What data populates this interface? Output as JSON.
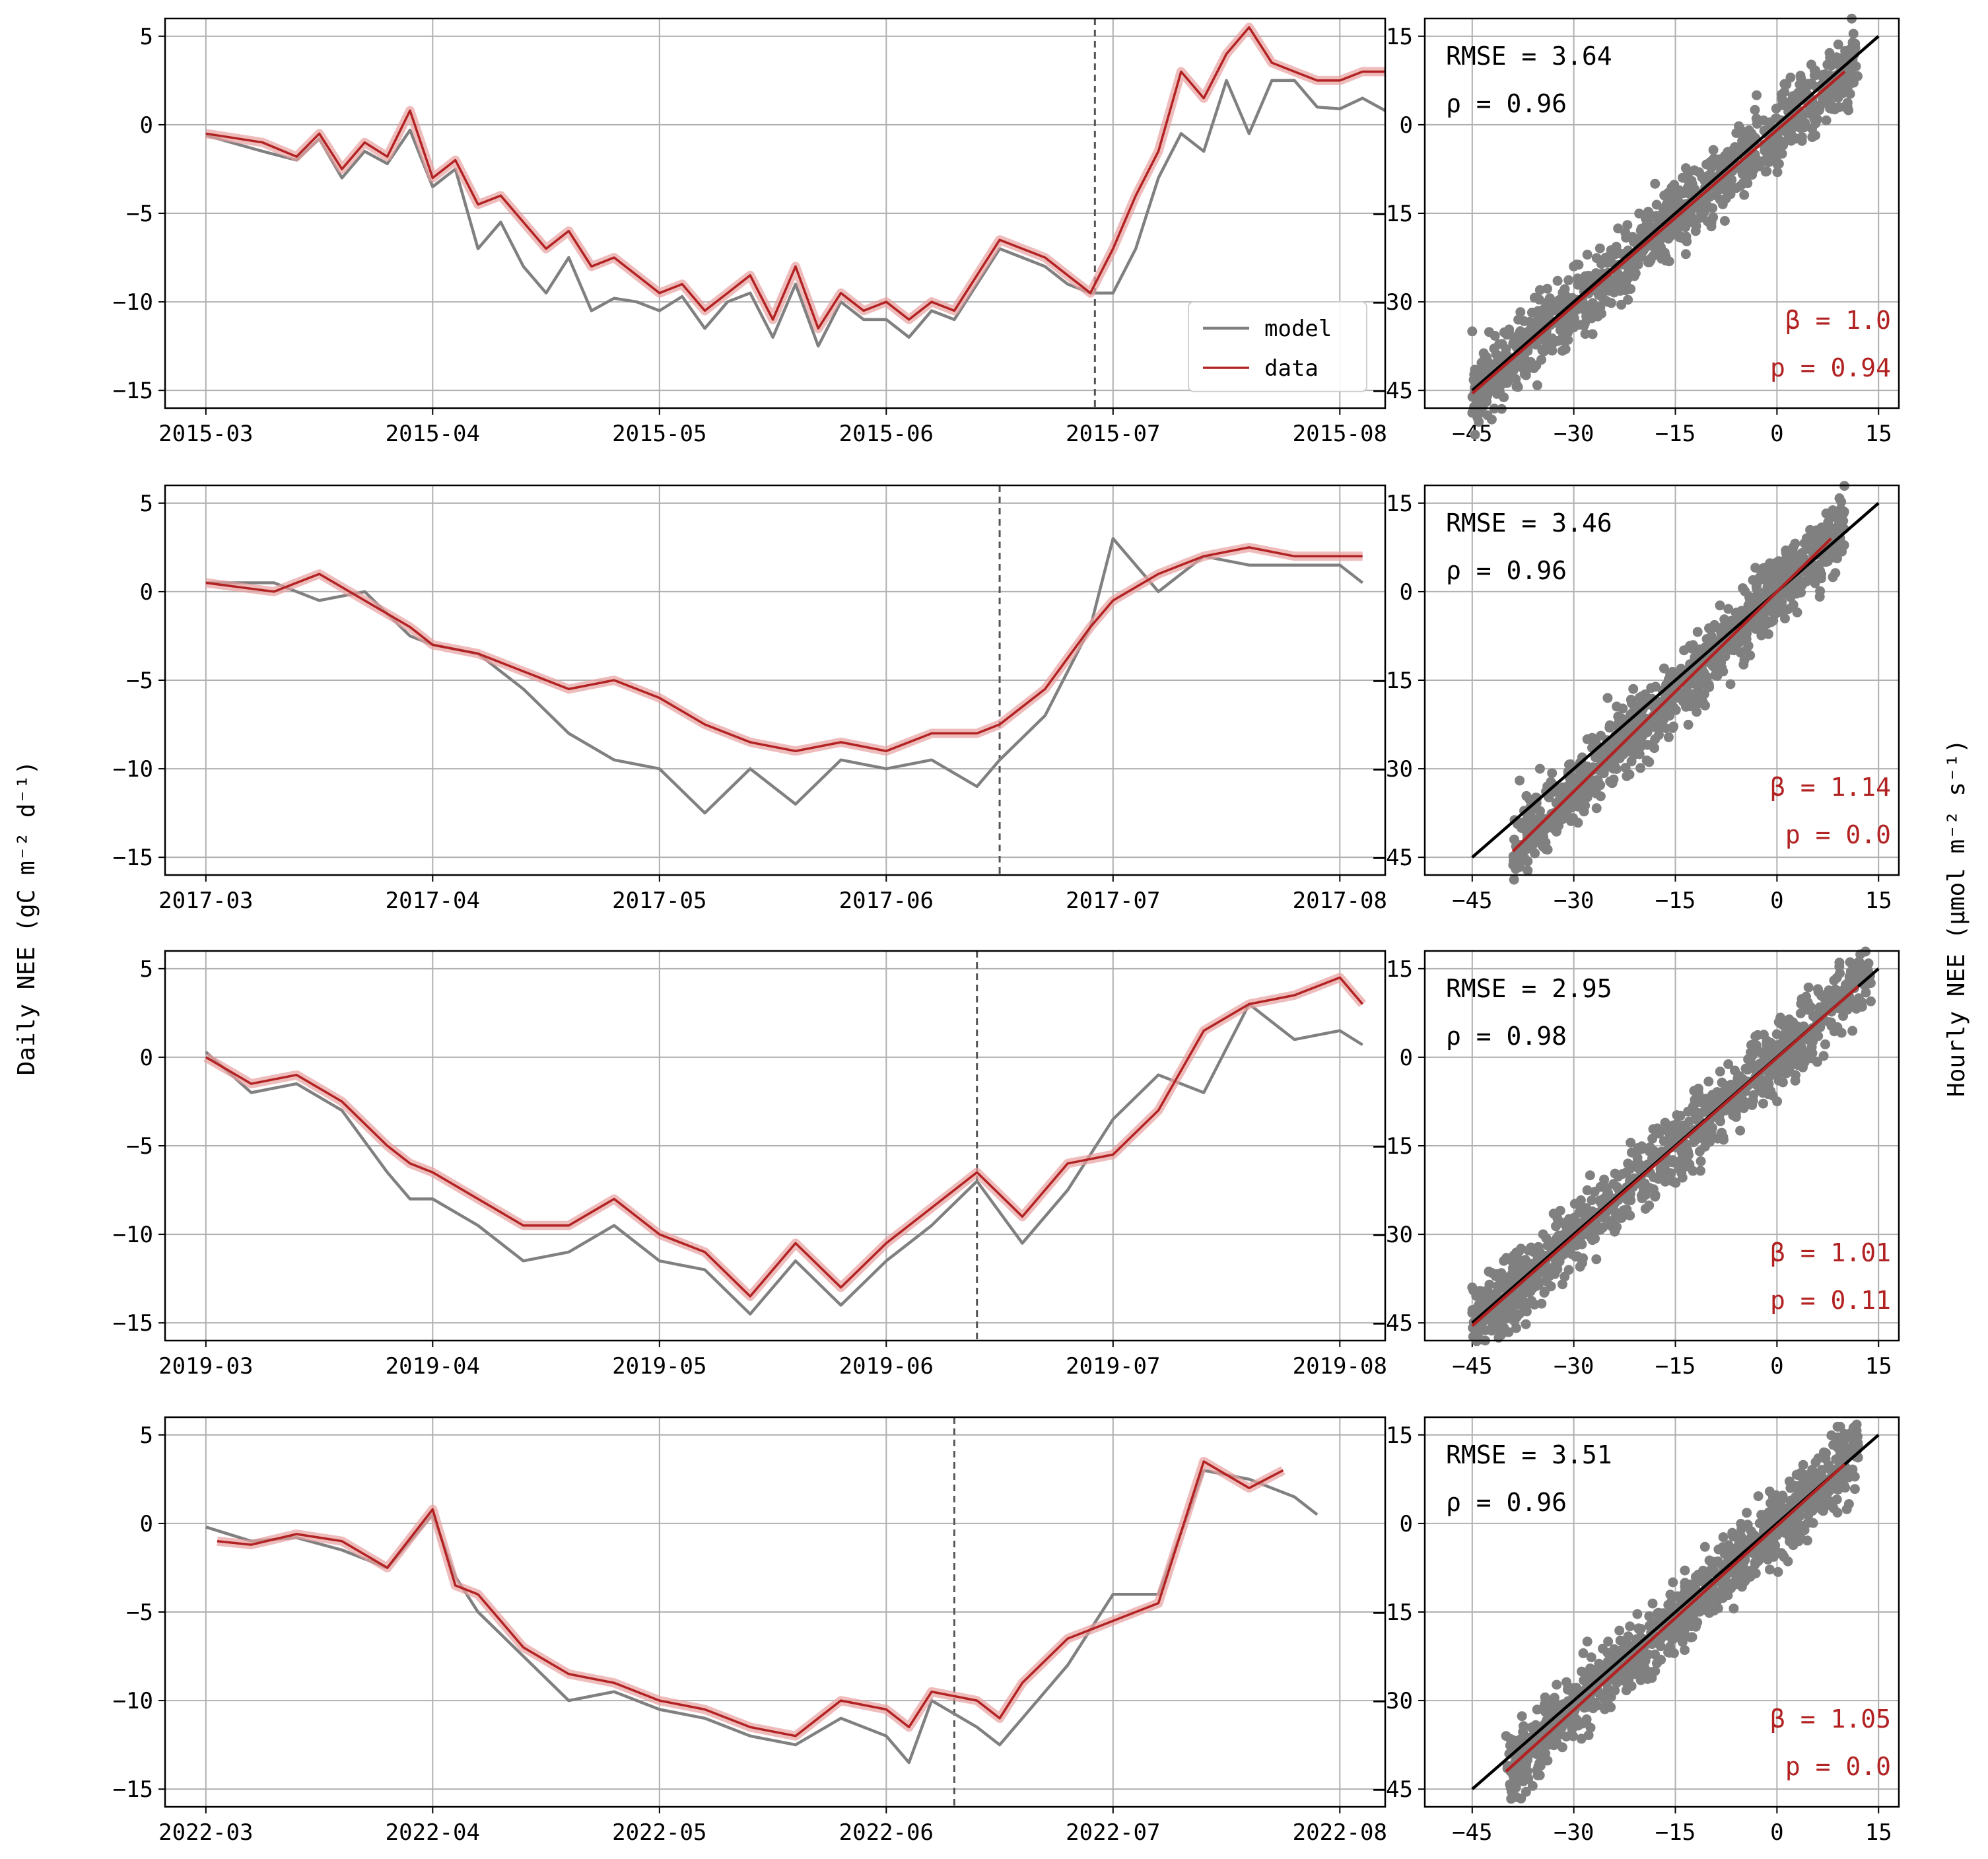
{
  "figure": {
    "left_ylabel": "Daily NEE (gC m⁻² d⁻¹)",
    "right_ylabel": "Hourly NEE (μmol m⁻² s⁻¹)",
    "legend": [
      {
        "label": "model",
        "color": "#808080"
      },
      {
        "label": "data",
        "color": "#b22222"
      }
    ],
    "colors": {
      "model": "#808080",
      "data": "#b22222",
      "band": "#e8a0a0",
      "one_to_one": "#000000",
      "grid": "#b0b0b0"
    }
  },
  "chart_data": [
    {
      "type": "line",
      "year": "2015",
      "x_ticks": [
        "2015-03",
        "2015-04",
        "2015-05",
        "2015-06",
        "2015-07",
        "2015-08"
      ],
      "x_range": [
        -0.18,
        5.2
      ],
      "y_ticks": [
        "5",
        "0",
        "−5",
        "−10",
        "−15"
      ],
      "ylim": [
        -16,
        6
      ],
      "split_marker": 3.92,
      "grid": true,
      "legend_position": "lower-right",
      "series": [
        {
          "name": "model",
          "x": [
            0,
            0.25,
            0.4,
            0.5,
            0.6,
            0.7,
            0.8,
            0.9,
            1.0,
            1.1,
            1.2,
            1.3,
            1.4,
            1.5,
            1.6,
            1.7,
            1.8,
            1.9,
            2.0,
            2.1,
            2.2,
            2.3,
            2.4,
            2.5,
            2.6,
            2.7,
            2.8,
            2.9,
            3.0,
            3.1,
            3.2,
            3.3,
            3.4,
            3.5,
            3.6,
            3.7,
            3.8,
            3.9,
            4.0,
            4.1,
            4.2,
            4.3,
            4.4,
            4.5,
            4.6,
            4.7,
            4.8,
            4.9,
            5.0,
            5.1,
            5.2
          ],
          "y": [
            -0.6,
            -1.5,
            -2.0,
            -0.8,
            -3.0,
            -1.5,
            -2.2,
            -0.3,
            -3.5,
            -2.5,
            -7.0,
            -5.5,
            -8.0,
            -9.5,
            -7.5,
            -10.5,
            -9.8,
            -10.0,
            -10.5,
            -9.7,
            -11.5,
            -10.0,
            -9.5,
            -12.0,
            -9.0,
            -12.5,
            -10.0,
            -11.0,
            -11.0,
            -12.0,
            -10.5,
            -11.0,
            -9.0,
            -7.0,
            -7.5,
            -8.0,
            -9.0,
            -9.5,
            -9.5,
            -7.0,
            -3.0,
            -0.5,
            -1.5,
            2.5,
            -0.5,
            2.5,
            2.5,
            1.0,
            0.9,
            1.5,
            0.8
          ]
        },
        {
          "name": "data",
          "x": [
            0,
            0.25,
            0.4,
            0.5,
            0.6,
            0.7,
            0.8,
            0.9,
            1.0,
            1.1,
            1.2,
            1.3,
            1.4,
            1.5,
            1.6,
            1.7,
            1.8,
            1.9,
            2.0,
            2.1,
            2.2,
            2.3,
            2.4,
            2.5,
            2.6,
            2.7,
            2.8,
            2.9,
            3.0,
            3.1,
            3.2,
            3.3,
            3.4,
            3.5,
            3.6,
            3.7,
            3.8,
            3.9,
            4.0,
            4.1,
            4.2,
            4.3,
            4.4,
            4.5,
            4.6,
            4.7,
            4.8,
            4.9,
            5.0,
            5.1,
            5.2
          ],
          "y": [
            -0.5,
            -1.0,
            -1.8,
            -0.5,
            -2.5,
            -1.0,
            -1.8,
            0.8,
            -3.0,
            -2.0,
            -4.5,
            -4.0,
            -5.5,
            -7.0,
            -6.0,
            -8.0,
            -7.5,
            -8.5,
            -9.5,
            -9.0,
            -10.5,
            -9.5,
            -8.5,
            -11.0,
            -8.0,
            -11.5,
            -9.5,
            -10.5,
            -10.0,
            -11.0,
            -10.0,
            -10.5,
            -8.5,
            -6.5,
            -7.0,
            -7.5,
            -8.5,
            -9.5,
            -7.0,
            -4.0,
            -1.5,
            3.0,
            1.5,
            4.0,
            5.5,
            3.5,
            3.0,
            2.5,
            2.5,
            3.0,
            3.0
          ]
        }
      ]
    },
    {
      "type": "scatter",
      "year": "2015",
      "x_ticks": [
        "−45",
        "−30",
        "−15",
        "0",
        "15"
      ],
      "y_ticks": [
        "15",
        "0",
        "−15",
        "−30",
        "−45"
      ],
      "xlim": [
        -52,
        18
      ],
      "ylim": [
        -48,
        18
      ],
      "one_to_one": [
        [
          -45,
          -45
        ],
        [
          15,
          15
        ]
      ],
      "fit_line": [
        [
          -45,
          -45.5
        ],
        [
          10,
          9
        ]
      ],
      "stats": {
        "rmse": "RMSE = 3.64",
        "rho": "ρ = 0.96",
        "beta": "β = 1.0",
        "p": "p = 0.94"
      },
      "points": [
        [
          -45,
          -35
        ],
        [
          -40,
          -38
        ],
        [
          -35,
          -36
        ],
        [
          -30,
          -24
        ],
        [
          -25,
          -30
        ],
        [
          -20,
          -19
        ],
        [
          -15,
          -16
        ],
        [
          -10,
          -14
        ],
        [
          -5,
          -4
        ],
        [
          0,
          -2
        ],
        [
          5,
          3
        ],
        [
          8,
          10
        ],
        [
          10,
          6
        ],
        [
          -28,
          -22
        ],
        [
          -18,
          -10
        ],
        [
          -12,
          -18
        ],
        [
          -3,
          5
        ],
        [
          2,
          8
        ],
        [
          -35,
          -28
        ],
        [
          -22,
          -26
        ]
      ]
    },
    {
      "type": "line",
      "year": "2017",
      "x_ticks": [
        "2017-03",
        "2017-04",
        "2017-05",
        "2017-06",
        "2017-07",
        "2017-08"
      ],
      "x_range": [
        -0.18,
        5.2
      ],
      "y_ticks": [
        "5",
        "0",
        "−5",
        "−10",
        "−15"
      ],
      "ylim": [
        -16,
        6
      ],
      "split_marker": 3.5,
      "grid": true,
      "series": [
        {
          "name": "model",
          "x": [
            0,
            0.3,
            0.5,
            0.7,
            0.9,
            1.0,
            1.2,
            1.4,
            1.6,
            1.8,
            2.0,
            2.2,
            2.4,
            2.6,
            2.8,
            3.0,
            3.2,
            3.4,
            3.5,
            3.7,
            3.9,
            4.0,
            4.2,
            4.4,
            4.6,
            4.8,
            5.0,
            5.1
          ],
          "y": [
            0.5,
            0.5,
            -0.5,
            0.0,
            -2.5,
            -3.0,
            -3.5,
            -5.5,
            -8.0,
            -9.5,
            -10.0,
            -12.5,
            -10.0,
            -12.0,
            -9.5,
            -10.0,
            -9.5,
            -11.0,
            -9.5,
            -7.0,
            -2.0,
            3.0,
            0.0,
            2.0,
            1.5,
            1.5,
            1.5,
            0.5
          ]
        },
        {
          "name": "data",
          "x": [
            0,
            0.3,
            0.5,
            0.7,
            0.9,
            1.0,
            1.2,
            1.4,
            1.6,
            1.8,
            2.0,
            2.2,
            2.4,
            2.6,
            2.8,
            3.0,
            3.2,
            3.4,
            3.5,
            3.7,
            3.9,
            4.0,
            4.2,
            4.4,
            4.6,
            4.8,
            5.0,
            5.1
          ],
          "y": [
            0.5,
            0.0,
            1.0,
            -0.5,
            -2.0,
            -3.0,
            -3.5,
            -4.5,
            -5.5,
            -5.0,
            -6.0,
            -7.5,
            -8.5,
            -9.0,
            -8.5,
            -9.0,
            -8.0,
            -8.0,
            -7.5,
            -5.5,
            -2.0,
            -0.5,
            1.0,
            2.0,
            2.5,
            2.0,
            2.0,
            2.0
          ]
        }
      ]
    },
    {
      "type": "scatter",
      "year": "2017",
      "x_ticks": [
        "−45",
        "−30",
        "−15",
        "0",
        "15"
      ],
      "y_ticks": [
        "15",
        "0",
        "−15",
        "−30",
        "−45"
      ],
      "xlim": [
        -52,
        18
      ],
      "ylim": [
        -48,
        18
      ],
      "one_to_one": [
        [
          -45,
          -45
        ],
        [
          15,
          15
        ]
      ],
      "fit_line": [
        [
          -39,
          -44
        ],
        [
          8,
          9
        ]
      ],
      "stats": {
        "rmse": "RMSE = 3.46",
        "rho": "ρ = 0.96",
        "beta": "β = 1.14",
        "p": "p = 0.0"
      },
      "points": [
        [
          -38,
          -32
        ],
        [
          -35,
          -30
        ],
        [
          -30,
          -34
        ],
        [
          -28,
          -25
        ],
        [
          -25,
          -28
        ],
        [
          -20,
          -21
        ],
        [
          -15,
          -14
        ],
        [
          -12,
          -18
        ],
        [
          -8,
          -10
        ],
        [
          -5,
          -6
        ],
        [
          0,
          -1
        ],
        [
          5,
          2
        ],
        [
          8,
          8
        ],
        [
          -25,
          -18
        ],
        [
          -18,
          -25
        ],
        [
          -10,
          -12
        ],
        [
          -2,
          4
        ],
        [
          3,
          6
        ]
      ]
    },
    {
      "type": "line",
      "year": "2019",
      "x_ticks": [
        "2019-03",
        "2019-04",
        "2019-05",
        "2019-06",
        "2019-07",
        "2019-08"
      ],
      "x_range": [
        -0.18,
        5.2
      ],
      "y_ticks": [
        "5",
        "0",
        "−5",
        "−10",
        "−15"
      ],
      "ylim": [
        -16,
        6
      ],
      "split_marker": 3.4,
      "grid": true,
      "series": [
        {
          "name": "model",
          "x": [
            0,
            0.2,
            0.4,
            0.6,
            0.8,
            0.9,
            1.0,
            1.2,
            1.4,
            1.6,
            1.8,
            2.0,
            2.2,
            2.4,
            2.6,
            2.8,
            3.0,
            3.2,
            3.4,
            3.6,
            3.8,
            4.0,
            4.2,
            4.4,
            4.6,
            4.8,
            5.0,
            5.1
          ],
          "y": [
            0.3,
            -2.0,
            -1.5,
            -3.0,
            -6.5,
            -8.0,
            -8.0,
            -9.5,
            -11.5,
            -11.0,
            -9.5,
            -11.5,
            -12.0,
            -14.5,
            -11.5,
            -14.0,
            -11.5,
            -9.5,
            -7.0,
            -10.5,
            -7.5,
            -3.5,
            -1.0,
            -2.0,
            3.0,
            1.0,
            1.5,
            0.7
          ]
        },
        {
          "name": "data",
          "x": [
            0,
            0.2,
            0.4,
            0.6,
            0.8,
            0.9,
            1.0,
            1.2,
            1.4,
            1.6,
            1.8,
            2.0,
            2.2,
            2.4,
            2.6,
            2.8,
            3.0,
            3.2,
            3.4,
            3.6,
            3.8,
            4.0,
            4.2,
            4.4,
            4.6,
            4.8,
            5.0,
            5.1
          ],
          "y": [
            0.0,
            -1.5,
            -1.0,
            -2.5,
            -5.0,
            -6.0,
            -6.5,
            -8.0,
            -9.5,
            -9.5,
            -8.0,
            -10.0,
            -11.0,
            -13.5,
            -10.5,
            -13.0,
            -10.5,
            -8.5,
            -6.5,
            -9.0,
            -6.0,
            -5.5,
            -3.0,
            1.5,
            3.0,
            3.5,
            4.5,
            3.0
          ]
        }
      ]
    },
    {
      "type": "scatter",
      "year": "2019",
      "x_ticks": [
        "−45",
        "−30",
        "−15",
        "0",
        "15"
      ],
      "y_ticks": [
        "15",
        "0",
        "−15",
        "−30",
        "−45"
      ],
      "xlim": [
        -52,
        18
      ],
      "ylim": [
        -48,
        18
      ],
      "one_to_one": [
        [
          -45,
          -45
        ],
        [
          15,
          15
        ]
      ],
      "fit_line": [
        [
          -45,
          -45.5
        ],
        [
          12,
          12
        ]
      ],
      "stats": {
        "rmse": "RMSE = 2.95",
        "rho": "ρ = 0.98",
        "beta": "β = 1.01",
        "p": "p = 0.11"
      },
      "points": [
        [
          -45,
          -39
        ],
        [
          -40,
          -38
        ],
        [
          -35,
          -33
        ],
        [
          -30,
          -28
        ],
        [
          -25,
          -26
        ],
        [
          -20,
          -20
        ],
        [
          -15,
          -14
        ],
        [
          -10,
          -11
        ],
        [
          -5,
          -5
        ],
        [
          0,
          0
        ],
        [
          5,
          4
        ],
        [
          10,
          8
        ],
        [
          -32,
          -26
        ],
        [
          -22,
          -18
        ],
        [
          -12,
          -14
        ],
        [
          -3,
          2
        ],
        [
          7,
          10
        ]
      ]
    },
    {
      "type": "line",
      "year": "2022",
      "x_ticks": [
        "2022-03",
        "2022-04",
        "2022-05",
        "2022-06",
        "2022-07",
        "2022-08"
      ],
      "x_range": [
        -0.18,
        5.2
      ],
      "y_ticks": [
        "5",
        "0",
        "−5",
        "−10",
        "−15"
      ],
      "ylim": [
        -16,
        6
      ],
      "split_marker": 3.3,
      "grid": true,
      "series": [
        {
          "name": "model",
          "x": [
            0,
            0.2,
            0.4,
            0.6,
            0.8,
            1.0,
            1.1,
            1.2,
            1.4,
            1.6,
            1.8,
            2.0,
            2.2,
            2.4,
            2.6,
            2.8,
            3.0,
            3.1,
            3.2,
            3.4,
            3.5,
            3.6,
            3.8,
            4.0,
            4.2,
            4.4,
            4.6,
            4.8,
            4.9
          ],
          "y": [
            -0.2,
            -1.0,
            -0.8,
            -1.5,
            -2.5,
            0.5,
            -3.0,
            -5.0,
            -7.5,
            -10.0,
            -9.5,
            -10.5,
            -11.0,
            -12.0,
            -12.5,
            -11.0,
            -12.0,
            -13.5,
            -10.0,
            -11.5,
            -12.5,
            -11.0,
            -8.0,
            -4.0,
            -4.0,
            3.0,
            2.5,
            1.5,
            0.5
          ]
        },
        {
          "name": "data",
          "x": [
            0.05,
            0.2,
            0.4,
            0.6,
            0.8,
            1.0,
            1.1,
            1.2,
            1.4,
            1.6,
            1.8,
            2.0,
            2.2,
            2.4,
            2.6,
            2.8,
            3.0,
            3.1,
            3.2,
            3.4,
            3.5,
            3.6,
            3.8,
            4.0,
            4.2,
            4.4,
            4.6,
            4.75
          ],
          "y": [
            -1.0,
            -1.2,
            -0.6,
            -1.0,
            -2.5,
            0.8,
            -3.5,
            -4.0,
            -7.0,
            -8.5,
            -9.0,
            -10.0,
            -10.5,
            -11.5,
            -12.0,
            -10.0,
            -10.5,
            -11.5,
            -9.5,
            -10.0,
            -11.0,
            -9.0,
            -6.5,
            -5.5,
            -4.5,
            3.5,
            2.0,
            3.0
          ]
        }
      ]
    },
    {
      "type": "scatter",
      "year": "2022",
      "x_ticks": [
        "−45",
        "−30",
        "−15",
        "0",
        "15"
      ],
      "y_ticks": [
        "15",
        "0",
        "−15",
        "−30",
        "−45"
      ],
      "xlim": [
        -52,
        18
      ],
      "ylim": [
        -48,
        18
      ],
      "one_to_one": [
        [
          -45,
          -45
        ],
        [
          15,
          15
        ]
      ],
      "fit_line": [
        [
          -40,
          -42
        ],
        [
          10,
          10
        ]
      ],
      "stats": {
        "rmse": "RMSE = 3.51",
        "rho": "ρ = 0.96",
        "beta": "β = 1.05",
        "p": "p = 0.0"
      },
      "points": [
        [
          -40,
          -36
        ],
        [
          -35,
          -38
        ],
        [
          -30,
          -32
        ],
        [
          -25,
          -28
        ],
        [
          -20,
          -22
        ],
        [
          -15,
          -16
        ],
        [
          -10,
          -12
        ],
        [
          -5,
          -7
        ],
        [
          0,
          -2
        ],
        [
          5,
          3
        ],
        [
          10,
          9
        ],
        [
          -28,
          -20
        ],
        [
          -18,
          -25
        ],
        [
          -8,
          -4
        ],
        [
          2,
          6
        ],
        [
          -33,
          -30
        ]
      ]
    }
  ]
}
